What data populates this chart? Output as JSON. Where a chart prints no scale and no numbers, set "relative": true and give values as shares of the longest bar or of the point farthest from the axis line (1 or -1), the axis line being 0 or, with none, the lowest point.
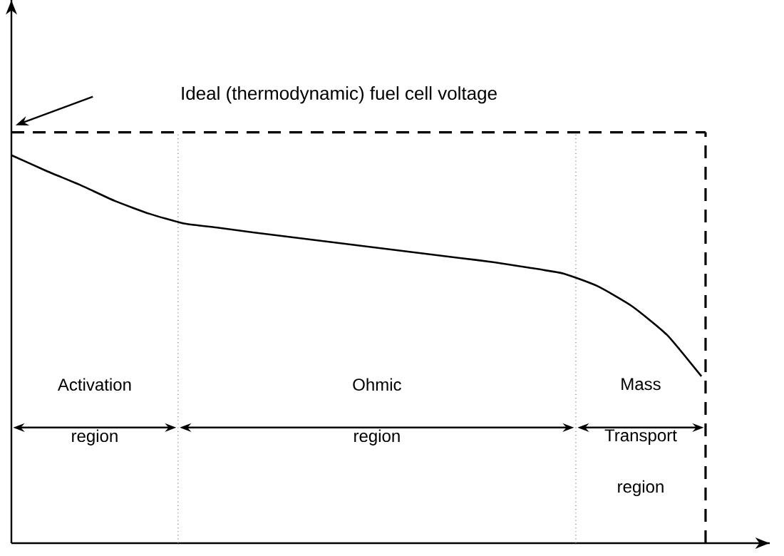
{
  "chart_data": {
    "type": "line",
    "relative": true,
    "categories": [
      null,
      null,
      null,
      null,
      null,
      null,
      null,
      null,
      null,
      null,
      null,
      null,
      null,
      null,
      null,
      null,
      null,
      null,
      null,
      null,
      null
    ],
    "series": [
      {
        "color": "#000000",
        "values": [
          1,
          0.96,
          0.923,
          0.882,
          0.849,
          0.824,
          0.813,
          0.801,
          0.79,
          0.779,
          0.768,
          0.757,
          0.746,
          0.735,
          0.724,
          0.71,
          0.695,
          0.662,
          0.61,
          0.537,
          0.43
        ]
      }
    ],
    "ref_lines": [
      {
        "axis": "y",
        "value": 1.059,
        "color": "#000000",
        "line_style": "dashed"
      }
    ],
    "annotations": [
      "Ideal (thermodynamic) fuel cell voltage",
      "Activation region",
      "Ohmic region",
      "Mass Transport region"
    ],
    "marker": "none",
    "line_style": "solid",
    "grid": false
  }
}
